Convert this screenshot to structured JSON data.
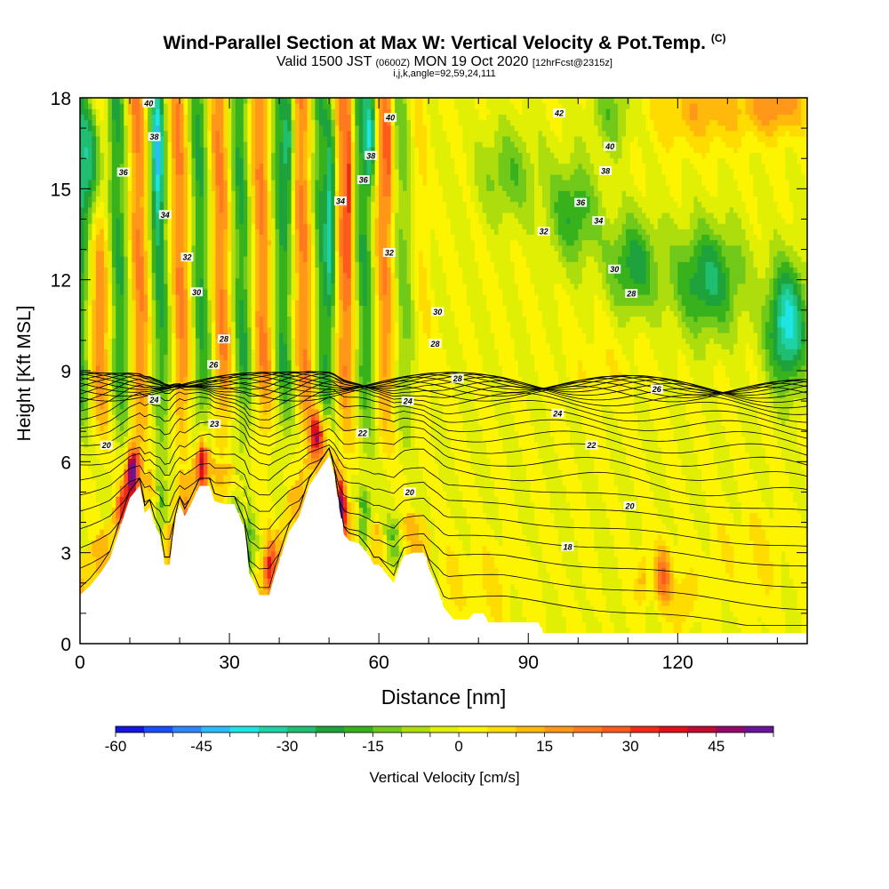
{
  "header": {
    "title_main": "Wind-Parallel Section at Max W: Vertical Velocity & Pot.Temp.",
    "title_mark": "(C)",
    "subtitle_a": "Valid 1500 JST",
    "subtitle_b": "(0600Z)",
    "subtitle_c": "MON 19 Oct 2020",
    "subtitle_d": "[12hrFcst@2315z]",
    "params": "i,j,k,angle=92,59,24,111"
  },
  "chart_data": {
    "type": "heatmap",
    "title": "Wind-Parallel Section at Max W: Vertical Velocity & Pot.Temp.",
    "xlabel": "Distance [nm]",
    "ylabel": "Height [Kft MSL]",
    "xlim": [
      0,
      146
    ],
    "ylim": [
      0,
      18
    ],
    "x_ticks": [
      "0",
      "30",
      "60",
      "90",
      "120"
    ],
    "y_ticks": [
      "0",
      "3",
      "6",
      "9",
      "12",
      "15",
      "18"
    ],
    "colorbar": {
      "label": "Vertical Velocity [cm/s]",
      "ticks": [
        "-60",
        "-45",
        "-30",
        "-15",
        "0",
        "15",
        "30",
        "45"
      ],
      "range": [
        -60,
        50
      ],
      "step": 5,
      "colors": [
        "#1515e0",
        "#1a4dff",
        "#2e86ff",
        "#2bbcff",
        "#1ee4e4",
        "#1ed2a6",
        "#1fbe70",
        "#1ea33c",
        "#37b21c",
        "#71c91a",
        "#aedd0e",
        "#e1ef05",
        "#fcf400",
        "#ffdc00",
        "#ffb90b",
        "#ff9718",
        "#ff7a1e",
        "#ff5a1e",
        "#f02a16",
        "#e0101a",
        "#c00a32",
        "#95066a",
        "#6a1499"
      ]
    },
    "terrain": [
      [
        0,
        1.6
      ],
      [
        2,
        1.9
      ],
      [
        4,
        2.3
      ],
      [
        6,
        2.8
      ],
      [
        8,
        3.8
      ],
      [
        10,
        4.8
      ],
      [
        12,
        5.2
      ],
      [
        13,
        4.3
      ],
      [
        14,
        4.5
      ],
      [
        15,
        3.9
      ],
      [
        16,
        3.6
      ],
      [
        17,
        2.6
      ],
      [
        18,
        2.6
      ],
      [
        19,
        3.9
      ],
      [
        20,
        4.6
      ],
      [
        21,
        4.2
      ],
      [
        22,
        4.5
      ],
      [
        24,
        5.2
      ],
      [
        26,
        5.2
      ],
      [
        27,
        4.7
      ],
      [
        29,
        4.6
      ],
      [
        31,
        4.6
      ],
      [
        33,
        3.8
      ],
      [
        34,
        2.3
      ],
      [
        35,
        2.0
      ],
      [
        36,
        1.6
      ],
      [
        38,
        1.6
      ],
      [
        39,
        2.2
      ],
      [
        41,
        3.2
      ],
      [
        42,
        3.7
      ],
      [
        44,
        4.2
      ],
      [
        46,
        5.2
      ],
      [
        48,
        5.7
      ],
      [
        50,
        6.2
      ],
      [
        51,
        5.6
      ],
      [
        52,
        4.5
      ],
      [
        53,
        3.6
      ],
      [
        54,
        3.4
      ],
      [
        56,
        3.3
      ],
      [
        58,
        2.9
      ],
      [
        59,
        2.6
      ],
      [
        60,
        2.6
      ],
      [
        61,
        2.4
      ],
      [
        62,
        2.2
      ],
      [
        63,
        2.0
      ],
      [
        64,
        2.5
      ],
      [
        65,
        2.9
      ],
      [
        67,
        3.0
      ],
      [
        69,
        3.0
      ],
      [
        70,
        2.5
      ],
      [
        71,
        2.1
      ],
      [
        72,
        1.7
      ],
      [
        73,
        1.2
      ],
      [
        74,
        1.0
      ],
      [
        75,
        0.8
      ],
      [
        78,
        0.8
      ],
      [
        79,
        1.0
      ],
      [
        81,
        1.0
      ],
      [
        82,
        0.7
      ],
      [
        92,
        0.7
      ],
      [
        93,
        0.35
      ],
      [
        146,
        0.35
      ]
    ],
    "theta_labels": [
      {
        "text": "40",
        "x": 13.8,
        "y": 17.83
      },
      {
        "text": "38",
        "x": 14.9,
        "y": 16.72
      },
      {
        "text": "36",
        "x": 8.7,
        "y": 15.55
      },
      {
        "text": "34",
        "x": 17.1,
        "y": 14.15
      },
      {
        "text": "32",
        "x": 21.5,
        "y": 12.75
      },
      {
        "text": "30",
        "x": 23.4,
        "y": 11.6
      },
      {
        "text": "28",
        "x": 28.9,
        "y": 10.05
      },
      {
        "text": "26",
        "x": 26.8,
        "y": 9.2
      },
      {
        "text": "24",
        "x": 14.9,
        "y": 8.05
      },
      {
        "text": "23",
        "x": 27.0,
        "y": 7.25
      },
      {
        "text": "20",
        "x": 5.3,
        "y": 6.55
      },
      {
        "text": "40",
        "x": 62.3,
        "y": 17.35
      },
      {
        "text": "38",
        "x": 58.4,
        "y": 16.1
      },
      {
        "text": "36",
        "x": 56.9,
        "y": 15.3
      },
      {
        "text": "34",
        "x": 52.3,
        "y": 14.6
      },
      {
        "text": "32",
        "x": 62.1,
        "y": 12.9
      },
      {
        "text": "30",
        "x": 71.8,
        "y": 10.95
      },
      {
        "text": "28",
        "x": 71.3,
        "y": 9.9
      },
      {
        "text": "28",
        "x": 75.8,
        "y": 8.75
      },
      {
        "text": "24",
        "x": 65.8,
        "y": 8.0
      },
      {
        "text": "22",
        "x": 56.7,
        "y": 6.95
      },
      {
        "text": "20",
        "x": 66.2,
        "y": 5.0
      },
      {
        "text": "18",
        "x": 97.9,
        "y": 3.2
      },
      {
        "text": "42",
        "x": 96.2,
        "y": 17.5
      },
      {
        "text": "40",
        "x": 106.4,
        "y": 16.4
      },
      {
        "text": "38",
        "x": 105.5,
        "y": 15.6
      },
      {
        "text": "36",
        "x": 100.5,
        "y": 14.55
      },
      {
        "text": "34",
        "x": 104.1,
        "y": 13.95
      },
      {
        "text": "32",
        "x": 93.1,
        "y": 13.6
      },
      {
        "text": "30",
        "x": 107.3,
        "y": 12.35
      },
      {
        "text": "28",
        "x": 110.7,
        "y": 11.55
      },
      {
        "text": "26",
        "x": 115.8,
        "y": 8.4
      },
      {
        "text": "24",
        "x": 95.9,
        "y": 7.6
      },
      {
        "text": "22",
        "x": 102.7,
        "y": 6.55
      },
      {
        "text": "20",
        "x": 110.4,
        "y": 4.55
      }
    ]
  }
}
